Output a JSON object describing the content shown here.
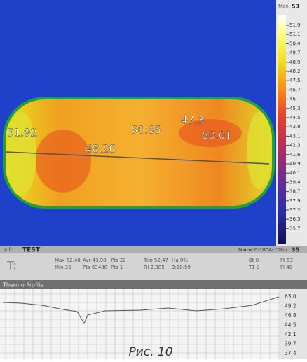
{
  "image": {
    "annotations": [
      "51.92",
      "48.26",
      "50.65",
      "47.3",
      "50.01"
    ]
  },
  "scale": {
    "max_label": "Max",
    "max": "53",
    "labels": [
      "51.9",
      "51.1",
      "50.4",
      "49.7",
      "48.9",
      "48.2",
      "47.5",
      "46.7",
      "46",
      "45.3",
      "44.5",
      "43.8",
      "43.1",
      "42.3",
      "41.6",
      "40.9",
      "40.1",
      "39.4",
      "38.7",
      "37.9",
      "37.2",
      "36.5",
      "35.7"
    ],
    "min_label": "Min",
    "min": "35"
  },
  "status": {
    "name_label": "Info",
    "name": "TEST",
    "preset": "Name 0-100A(*1",
    "unit": "T:",
    "row1": [
      "Max 52.40",
      "Avr 43.98",
      "Pts 22",
      "Tim 52.47",
      "Hu 0%",
      "Bt 0",
      "Ft 53"
    ],
    "row2": [
      "Min 35",
      "Pts 63488",
      "Pts 1",
      "Fil 2.385",
      "9:28:59",
      "T1 0",
      "Fl 40"
    ]
  },
  "profile": {
    "title": "Thermo Profile",
    "labels": [
      "63.0",
      "49.2",
      "46.8",
      "44.5",
      "42.1",
      "39.7",
      "37.4"
    ]
  },
  "caption": "Рис. 10"
}
